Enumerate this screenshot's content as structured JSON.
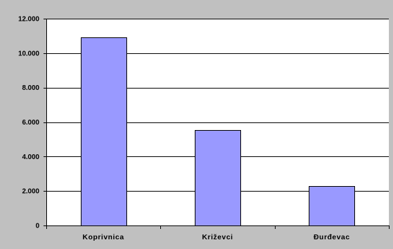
{
  "chart_data": {
    "type": "bar",
    "categories": [
      "Koprivnica",
      "Križevci",
      "Đurđevac"
    ],
    "values": [
      10900,
      5550,
      2270
    ],
    "ylim": [
      0,
      12000
    ],
    "yticks": [
      0,
      2000,
      4000,
      6000,
      8000,
      10000,
      12000
    ],
    "ytick_labels": [
      "0",
      "2.000",
      "4.000",
      "6.000",
      "8.000",
      "10.000",
      "12.000"
    ],
    "grid": true,
    "legend": "none"
  },
  "colors": {
    "frame_background": "#c0c0c0",
    "plot_background": "#ffffff",
    "bar_fill": "#9999ff",
    "bar_stroke": "#000000",
    "grid_line": "#000000"
  }
}
